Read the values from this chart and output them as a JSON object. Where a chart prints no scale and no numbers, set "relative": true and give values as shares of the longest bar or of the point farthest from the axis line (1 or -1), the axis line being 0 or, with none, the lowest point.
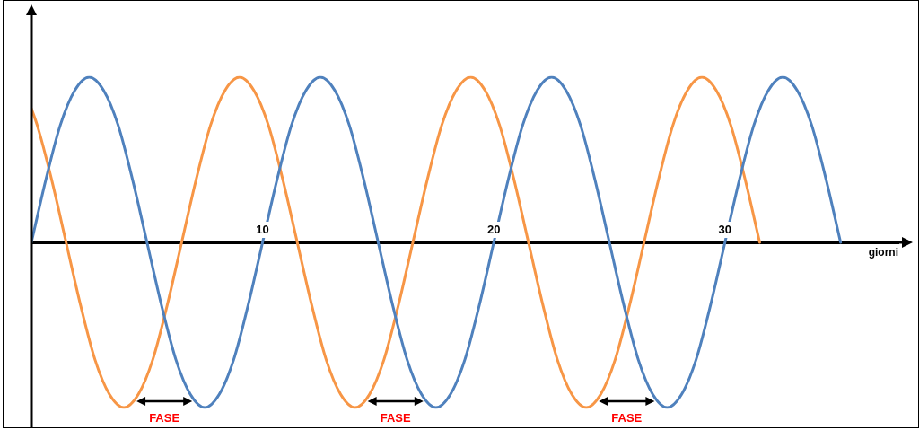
{
  "chart_data": {
    "type": "line",
    "relative": true,
    "xlabel": "giorni",
    "xlim": [
      0,
      37.5
    ],
    "xticks": [
      10,
      20,
      30
    ],
    "tick_labels": "x",
    "grid": false,
    "legend": false,
    "line_style": "solid",
    "series": [
      {
        "color": "#4f81bd",
        "x": [
          0,
          0.625,
          1.25,
          1.875,
          2.5,
          3.125,
          3.75,
          4.375,
          5,
          5.625,
          6.25,
          6.875,
          7.5,
          8.125,
          8.75,
          9.375,
          10,
          10.625,
          11.25,
          11.875,
          12.5,
          13.125,
          13.75,
          14.375,
          15,
          15.625,
          16.25,
          16.875,
          17.5,
          18.125,
          18.75,
          19.375,
          20,
          20.625,
          21.25,
          21.875,
          22.5,
          23.125,
          23.75,
          24.375,
          25,
          25.625,
          26.25,
          26.875,
          27.5,
          28.125,
          28.75,
          29.375,
          30,
          30.625,
          31.25,
          31.875,
          32.5,
          33.125,
          33.75,
          34.375,
          35
        ],
        "values": [
          0,
          0.38,
          0.71,
          0.92,
          1,
          0.92,
          0.71,
          0.38,
          0,
          -0.38,
          -0.71,
          -0.92,
          -1,
          -0.92,
          -0.71,
          -0.38,
          0,
          0.38,
          0.71,
          0.92,
          1,
          0.92,
          0.71,
          0.38,
          0,
          -0.38,
          -0.71,
          -0.92,
          -1,
          -0.92,
          -0.71,
          -0.38,
          0,
          0.38,
          0.71,
          0.92,
          1,
          0.92,
          0.71,
          0.38,
          0,
          -0.38,
          -0.71,
          -0.92,
          -1,
          -0.92,
          -0.71,
          -0.38,
          0,
          0.38,
          0.71,
          0.92,
          1,
          0.92,
          0.71,
          0.38,
          0
        ]
      },
      {
        "color": "#f79646",
        "x": [
          0,
          0.25,
          0.875,
          1.5,
          2.125,
          2.75,
          3.375,
          4,
          4.625,
          5.25,
          5.875,
          6.5,
          7.125,
          7.75,
          8.375,
          9,
          9.625,
          10.25,
          10.875,
          11.5,
          12.125,
          12.75,
          13.375,
          14,
          14.625,
          15.25,
          15.875,
          16.5,
          17.125,
          17.75,
          18.375,
          19,
          19.625,
          20.25,
          20.875,
          21.5,
          22.125,
          22.75,
          23.375,
          24,
          24.625,
          25.25,
          25.875,
          26.5,
          27.125,
          27.75,
          28.375,
          29,
          29.625,
          30.25,
          30.875,
          31.5
        ],
        "values": [
          0.81,
          0.71,
          0.38,
          0,
          -0.38,
          -0.71,
          -0.92,
          -1,
          -0.92,
          -0.71,
          -0.38,
          0,
          0.38,
          0.71,
          0.92,
          1,
          0.92,
          0.71,
          0.38,
          0,
          -0.38,
          -0.71,
          -0.92,
          -1,
          -0.92,
          -0.71,
          -0.38,
          0,
          0.38,
          0.71,
          0.92,
          1,
          0.92,
          0.71,
          0.38,
          0,
          -0.38,
          -0.71,
          -0.92,
          -1,
          -0.92,
          -0.71,
          -0.38,
          0,
          0.38,
          0.71,
          0.92,
          1,
          0.92,
          0.71,
          0.38,
          0
        ]
      }
    ],
    "annotations": [
      "FASE",
      "FASE",
      "FASE"
    ]
  }
}
